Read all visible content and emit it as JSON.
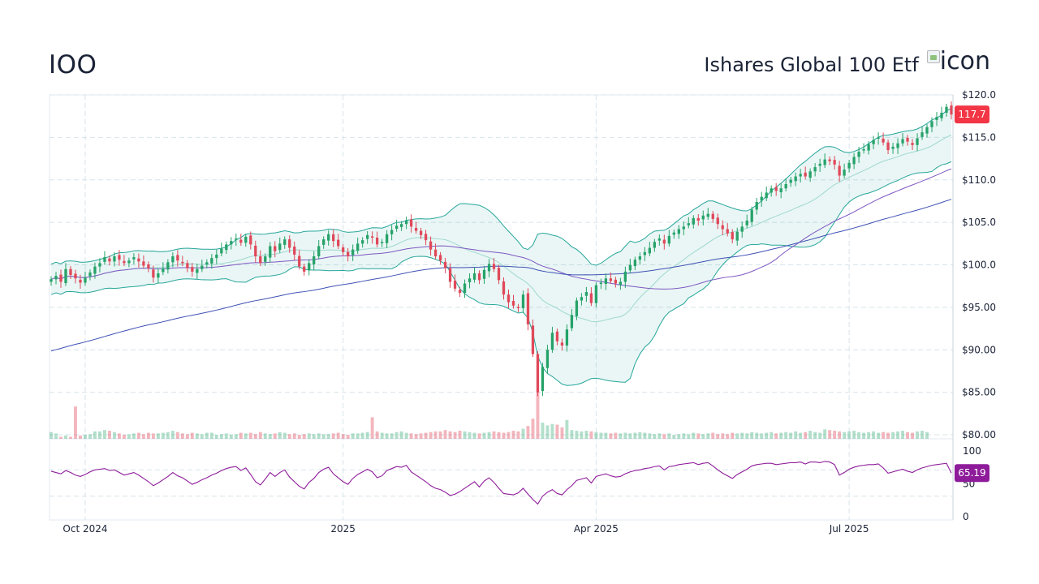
{
  "header": {
    "ticker": "IOO",
    "fund_name": "Ishares Global 100 Etf",
    "icon_alt": "icon"
  },
  "colors": {
    "up": "#26a269",
    "down": "#e0485a",
    "band": "#26a69a",
    "sma": "#7e57c2",
    "sma200": "#3f51b5",
    "rsi": "#8e1c9a",
    "price_badge": "#f23645",
    "rsi_badge": "#8e1c9a"
  },
  "chart_data": [
    {
      "type": "candlestick",
      "title": "IOO",
      "subtitle": "Ishares Global 100 Etf",
      "price_label": "117.7",
      "y_range": [
        80,
        120
      ],
      "y_ticks": [
        "$120.0",
        "$115.0",
        "$110.0",
        "$105.0",
        "$100.0",
        "$95.00",
        "$90.00",
        "$85.00",
        "$80.00"
      ],
      "x_ticks": [
        "Oct 2024",
        "2025",
        "Apr 2025",
        "Jul 2025"
      ],
      "grid": true,
      "series": [
        {
          "name": "",
          "kind": "close",
          "values": [
            98.3,
            98.7,
            98.0,
            99.5,
            98.8,
            98.4,
            97.9,
            98.5,
            99.1,
            99.8,
            100.2,
            100.9,
            100.4,
            101.0,
            100.6,
            100.2,
            100.5,
            100.9,
            100.4,
            99.9,
            99.6,
            98.5,
            99.0,
            99.6,
            100.3,
            101.0,
            100.5,
            100.2,
            99.6,
            99.2,
            99.5,
            99.9,
            100.3,
            100.8,
            101.2,
            101.9,
            102.4,
            102.8,
            103.1,
            102.6,
            103.3,
            102.4,
            101.0,
            100.2,
            101.0,
            102.2,
            101.6,
            102.5,
            103.0,
            102.0,
            101.2,
            99.8,
            99.2,
            100.2,
            101.0,
            102.2,
            103.0,
            103.6,
            102.8,
            102.2,
            101.5,
            101.0,
            101.8,
            102.5,
            102.9,
            103.5,
            103.2,
            102.4,
            102.7,
            103.6,
            104.1,
            104.6,
            104.8,
            105.2,
            104.5,
            104.0,
            103.5,
            102.9,
            101.8,
            101.0,
            100.5,
            99.6,
            98.0,
            97.2,
            96.7,
            97.8,
            98.4,
            99.0,
            98.2,
            99.4,
            100.1,
            99.5,
            98.2,
            96.5,
            95.6,
            95.2,
            94.9,
            96.5,
            93.0,
            89.5,
            85.0,
            88.0,
            90.0,
            92.0,
            91.0,
            90.5,
            92.4,
            94.1,
            95.8,
            96.2,
            96.8,
            95.5,
            97.6,
            97.9,
            98.4,
            98.1,
            97.8,
            98.0,
            99.2,
            100.0,
            100.6,
            101.0,
            101.5,
            102.0,
            102.7,
            103.1,
            102.5,
            103.4,
            103.8,
            104.2,
            104.5,
            104.9,
            105.5,
            105.2,
            105.8,
            106.0,
            105.4,
            104.8,
            104.2,
            103.7,
            103.0,
            103.9,
            104.5,
            105.2,
            106.5,
            107.4,
            108.0,
            108.5,
            109.0,
            108.7,
            109.0,
            109.5,
            110.0,
            110.4,
            110.7,
            110.4,
            111.0,
            111.5,
            111.9,
            112.4,
            112.2,
            111.8,
            110.5,
            111.2,
            112.0,
            112.7,
            113.3,
            113.6,
            114.2,
            114.7,
            115.0,
            114.4,
            113.5,
            113.9,
            114.3,
            114.8,
            114.5,
            114.1,
            114.9,
            115.6,
            116.2,
            116.9,
            117.4,
            117.9,
            118.6,
            117.7
          ]
        },
        {
          "name": "",
          "kind": "bollinger_upper"
        },
        {
          "name": "",
          "kind": "bollinger_lower"
        },
        {
          "name": "",
          "kind": "moving_average_short"
        },
        {
          "name": "",
          "kind": "moving_average_long"
        }
      ],
      "volume": [
        1,
        0.8,
        0.3,
        0.5,
        0.3,
        4.8,
        0.5,
        0.6,
        0.7,
        1.1,
        1.1,
        1.3,
        1.2,
        1.0,
        0.8,
        0.6,
        0.7,
        0.8,
        0.9,
        0.7,
        0.9,
        0.8,
        0.8,
        0.9,
        1.0,
        1.2,
        1.0,
        0.8,
        0.7,
        0.9,
        0.8,
        0.7,
        0.9,
        0.9,
        0.6,
        0.7,
        0.8,
        0.6,
        0.7,
        0.9,
        0.8,
        0.9,
        0.7,
        1.0,
        0.8,
        0.7,
        0.8,
        1.0,
        0.9,
        0.7,
        0.8,
        0.6,
        0.7,
        0.8,
        0.7,
        0.8,
        0.7,
        0.7,
        0.8,
        0.9,
        0.7,
        0.6,
        0.8,
        0.8,
        0.9,
        1.0,
        3.2,
        1.1,
        0.9,
        0.8,
        0.8,
        1.0,
        1.1,
        0.9,
        0.8,
        0.7,
        0.8,
        0.9,
        1.0,
        1.1,
        1.1,
        1.3,
        1.1,
        1.0,
        1.2,
        1.1,
        1.0,
        0.9,
        0.8,
        0.9,
        1.0,
        1.1,
        1.0,
        0.9,
        1.0,
        1.2,
        1.1,
        1.5,
        1.9,
        3.0,
        7.0,
        2.4,
        2.0,
        2.2,
        2.1,
        1.7,
        2.8,
        1.3,
        1.2,
        1.1,
        1.2,
        1.1,
        1.0,
        0.9,
        0.9,
        0.8,
        0.9,
        0.8,
        0.9,
        0.8,
        0.9,
        1.0,
        0.9,
        0.8,
        0.7,
        0.8,
        0.7,
        0.8,
        0.6,
        0.7,
        0.8,
        0.7,
        0.9,
        0.8,
        0.7,
        0.8,
        0.9,
        0.7,
        0.8,
        0.7,
        0.9,
        0.8,
        0.9,
        0.8,
        1.0,
        0.9,
        0.8,
        0.9,
        1.0,
        0.8,
        0.9,
        1.0,
        0.9,
        1.1,
        0.9,
        1.0,
        1.2,
        1.0,
        0.9,
        1.4,
        1.3,
        1.2,
        1.1,
        1.0,
        1.1,
        1.2,
        1.0,
        0.9,
        1.0,
        1.1,
        0.9,
        1.0,
        0.9,
        1.0,
        1.1,
        1.2,
        1.0,
        0.9,
        1.1,
        1.2,
        1.0
      ],
      "volume_spikes": [
        5,
        47,
        51,
        58,
        66,
        86,
        99
      ]
    },
    {
      "type": "line",
      "title": "",
      "value_label": "65.19",
      "y_range": [
        0,
        100
      ],
      "y_ticks": [
        "100",
        "50",
        "0"
      ],
      "series": [
        {
          "name": "",
          "values": [
            68,
            66,
            64,
            69,
            66,
            62,
            60,
            63,
            67,
            70,
            71,
            72,
            69,
            70,
            66,
            62,
            64,
            66,
            62,
            57,
            52,
            46,
            50,
            55,
            60,
            66,
            61,
            58,
            53,
            48,
            51,
            55,
            58,
            62,
            65,
            69,
            72,
            74,
            75,
            69,
            73,
            63,
            52,
            47,
            56,
            66,
            60,
            66,
            70,
            59,
            52,
            45,
            41,
            51,
            57,
            66,
            71,
            74,
            64,
            58,
            52,
            48,
            57,
            63,
            67,
            71,
            67,
            58,
            61,
            69,
            72,
            75,
            74,
            77,
            67,
            62,
            57,
            52,
            46,
            42,
            40,
            36,
            31,
            33,
            37,
            42,
            47,
            52,
            44,
            53,
            58,
            51,
            42,
            34,
            33,
            32,
            35,
            42,
            33,
            25,
            18,
            30,
            36,
            40,
            34,
            32,
            40,
            46,
            54,
            56,
            58,
            50,
            60,
            62,
            64,
            61,
            59,
            60,
            64,
            67,
            69,
            70,
            72,
            73,
            75,
            76,
            70,
            75,
            76,
            78,
            79,
            80,
            81,
            78,
            80,
            81,
            76,
            70,
            65,
            61,
            57,
            63,
            67,
            71,
            76,
            78,
            79,
            80,
            80,
            78,
            79,
            80,
            81,
            81,
            82,
            79,
            82,
            82,
            81,
            83,
            82,
            78,
            62,
            66,
            71,
            74,
            76,
            77,
            78,
            78,
            79,
            73,
            65,
            67,
            69,
            71,
            68,
            66,
            70,
            73,
            75,
            77,
            78,
            79,
            80,
            65.19
          ]
        }
      ]
    }
  ]
}
